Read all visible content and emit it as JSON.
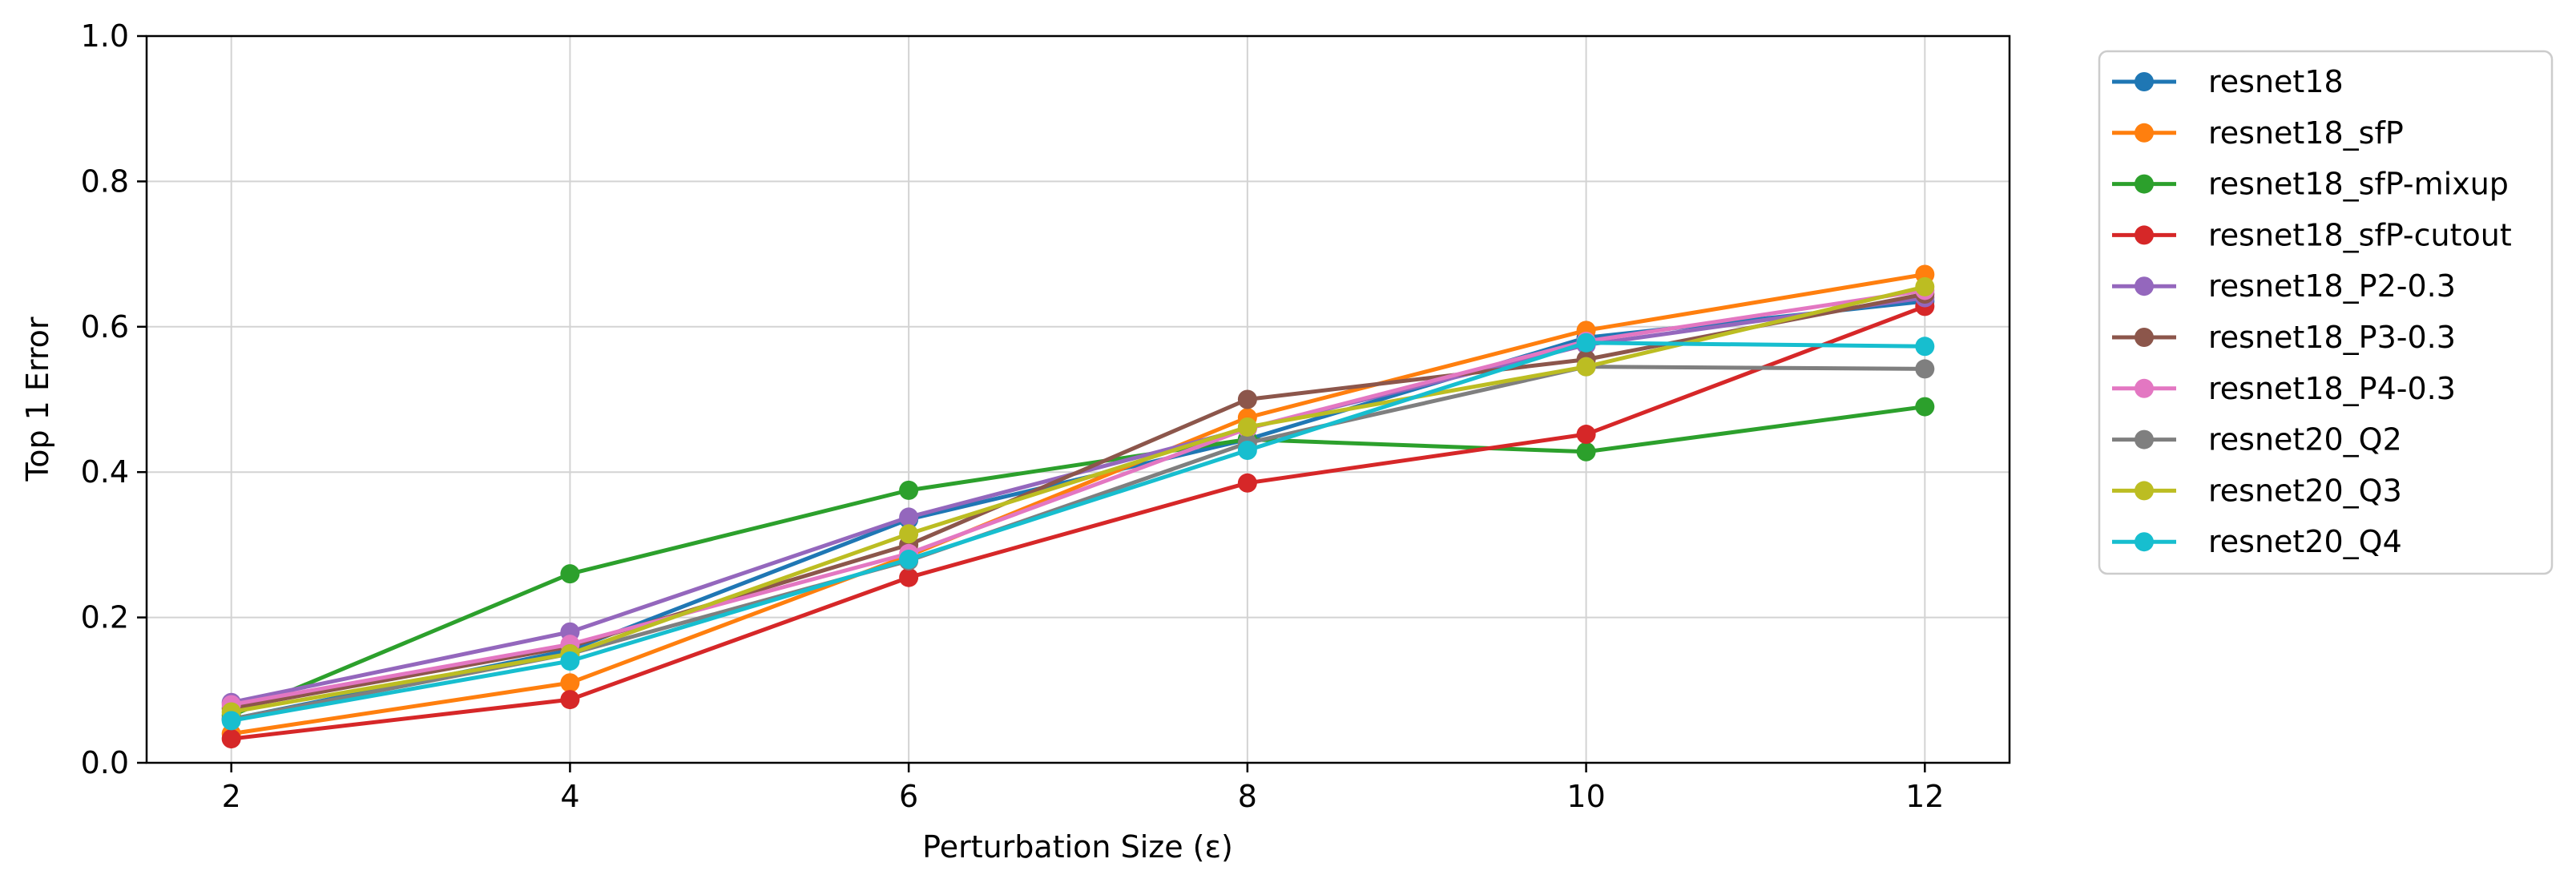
{
  "chart_data": {
    "type": "line",
    "title": "",
    "xlabel": "Perturbation Size (ε)",
    "ylabel": "Top 1 Error",
    "x": [
      2,
      4,
      6,
      8,
      10,
      12
    ],
    "xlim": [
      1.5,
      12.5
    ],
    "ylim": [
      0.0,
      1.0
    ],
    "xticks": [
      "2",
      "4",
      "6",
      "8",
      "10",
      "12"
    ],
    "yticks": [
      "0.0",
      "0.2",
      "0.4",
      "0.6",
      "0.8",
      "1.0"
    ],
    "grid": true,
    "legend_position": "outside-right",
    "series": [
      {
        "name": "resnet18",
        "color": "#1f77b4",
        "values": [
          0.06,
          0.155,
          0.335,
          0.445,
          0.585,
          0.635
        ]
      },
      {
        "name": "resnet18_sfP",
        "color": "#ff7f0e",
        "values": [
          0.04,
          0.11,
          0.285,
          0.475,
          0.595,
          0.672
        ]
      },
      {
        "name": "resnet18_sfP-mixup",
        "color": "#2ca02c",
        "values": [
          0.065,
          0.26,
          0.375,
          0.445,
          0.428,
          0.49
        ]
      },
      {
        "name": "resnet18_sfP-cutout",
        "color": "#d62728",
        "values": [
          0.033,
          0.087,
          0.255,
          0.385,
          0.452,
          0.628
        ]
      },
      {
        "name": "resnet18_P2-0.3",
        "color": "#9467bd",
        "values": [
          0.083,
          0.18,
          0.338,
          0.46,
          0.575,
          0.64
        ]
      },
      {
        "name": "resnet18_P3-0.3",
        "color": "#8c564b",
        "values": [
          0.075,
          0.16,
          0.3,
          0.5,
          0.555,
          0.645
        ]
      },
      {
        "name": "resnet18_P4-0.3",
        "color": "#e377c2",
        "values": [
          0.08,
          0.163,
          0.288,
          0.46,
          0.58,
          0.65
        ]
      },
      {
        "name": "resnet20_Q2",
        "color": "#7f7f7f",
        "values": [
          0.06,
          0.15,
          0.278,
          0.44,
          0.545,
          0.542
        ]
      },
      {
        "name": "resnet20_Q3",
        "color": "#bcbd22",
        "values": [
          0.07,
          0.15,
          0.315,
          0.462,
          0.545,
          0.655
        ]
      },
      {
        "name": "resnet20_Q4",
        "color": "#17becf",
        "values": [
          0.058,
          0.14,
          0.28,
          0.43,
          0.578,
          0.573
        ]
      }
    ]
  }
}
